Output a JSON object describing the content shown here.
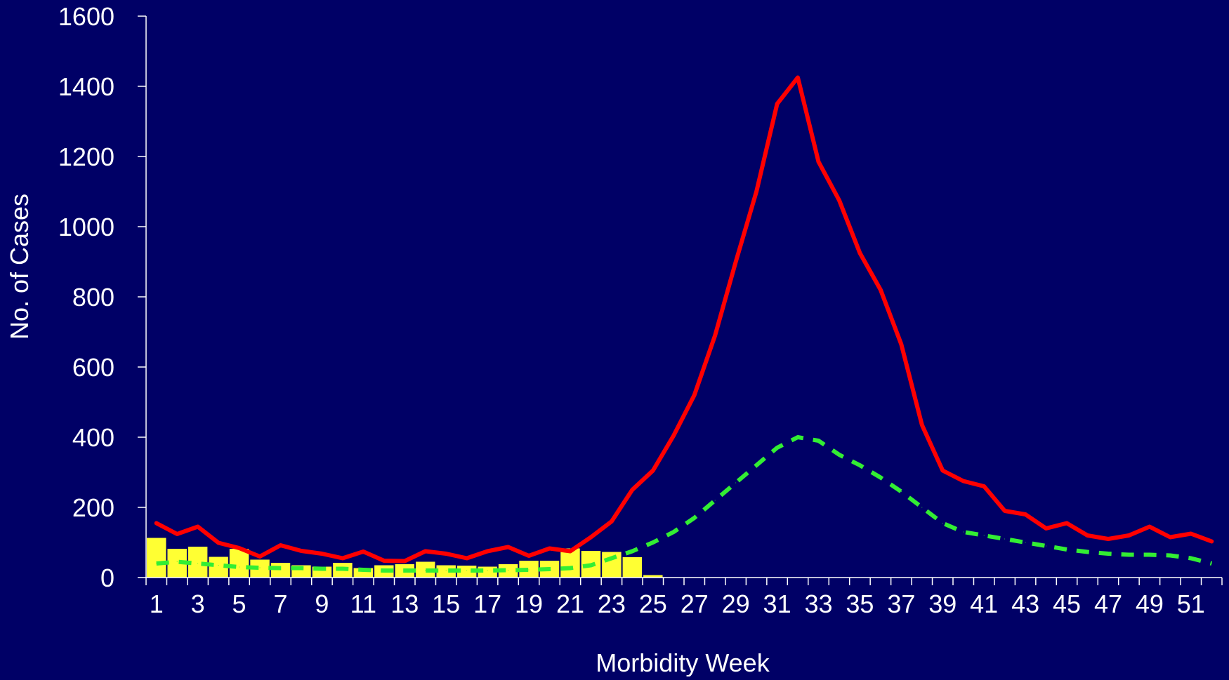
{
  "chart_data": {
    "type": "bar",
    "title": "",
    "xlabel": "Morbidity Week",
    "ylabel": "No. of Cases",
    "ylim": [
      0,
      1600
    ],
    "y_ticks": [
      0,
      200,
      400,
      600,
      800,
      1000,
      1200,
      1400,
      1600
    ],
    "x_tick_labels": [
      "1",
      "3",
      "5",
      "7",
      "9",
      "11",
      "13",
      "15",
      "17",
      "19",
      "21",
      "23",
      "25",
      "27",
      "29",
      "31",
      "33",
      "35",
      "37",
      "39",
      "41",
      "43",
      "45",
      "47",
      "49",
      "51"
    ],
    "weeks": [
      1,
      2,
      3,
      4,
      5,
      6,
      7,
      8,
      9,
      10,
      11,
      12,
      13,
      14,
      15,
      16,
      17,
      18,
      19,
      20,
      21,
      22,
      23,
      24,
      25,
      26,
      27,
      28,
      29,
      30,
      31,
      32,
      33,
      34,
      35,
      36,
      37,
      38,
      39,
      40,
      41,
      42,
      43,
      44,
      45,
      46,
      47,
      48,
      49,
      50,
      51,
      52
    ],
    "grid": false,
    "legend": "none",
    "series": [
      {
        "type": "bar",
        "color": "#ffff33",
        "values": [
          113,
          82,
          88,
          59,
          82,
          51,
          42,
          35,
          31,
          42,
          27,
          35,
          38,
          45,
          35,
          34,
          31,
          38,
          48,
          48,
          83,
          76,
          73,
          58,
          7
        ]
      },
      {
        "type": "line",
        "color": "#ff0000",
        "style": "solid",
        "values": [
          155,
          124,
          145,
          99,
          84,
          60,
          92,
          76,
          68,
          55,
          74,
          48,
          47,
          75,
          68,
          55,
          75,
          87,
          62,
          83,
          75,
          115,
          160,
          250,
          305,
          405,
          520,
          690,
          900,
          1100,
          1350,
          1425,
          1185,
          1075,
          925,
          820,
          665,
          435,
          305,
          275,
          260,
          190,
          180,
          140,
          155,
          120,
          110,
          120,
          145,
          115,
          125,
          103
        ]
      },
      {
        "type": "line",
        "color": "#33ee33",
        "style": "dashed",
        "values": [
          40,
          45,
          40,
          35,
          30,
          28,
          27,
          27,
          25,
          25,
          22,
          20,
          20,
          20,
          20,
          20,
          20,
          21,
          22,
          24,
          27,
          35,
          55,
          75,
          100,
          130,
          170,
          220,
          270,
          320,
          370,
          400,
          390,
          350,
          320,
          285,
          245,
          200,
          155,
          130,
          120,
          110,
          100,
          90,
          80,
          73,
          68,
          65,
          65,
          63,
          55,
          40
        ]
      }
    ]
  }
}
